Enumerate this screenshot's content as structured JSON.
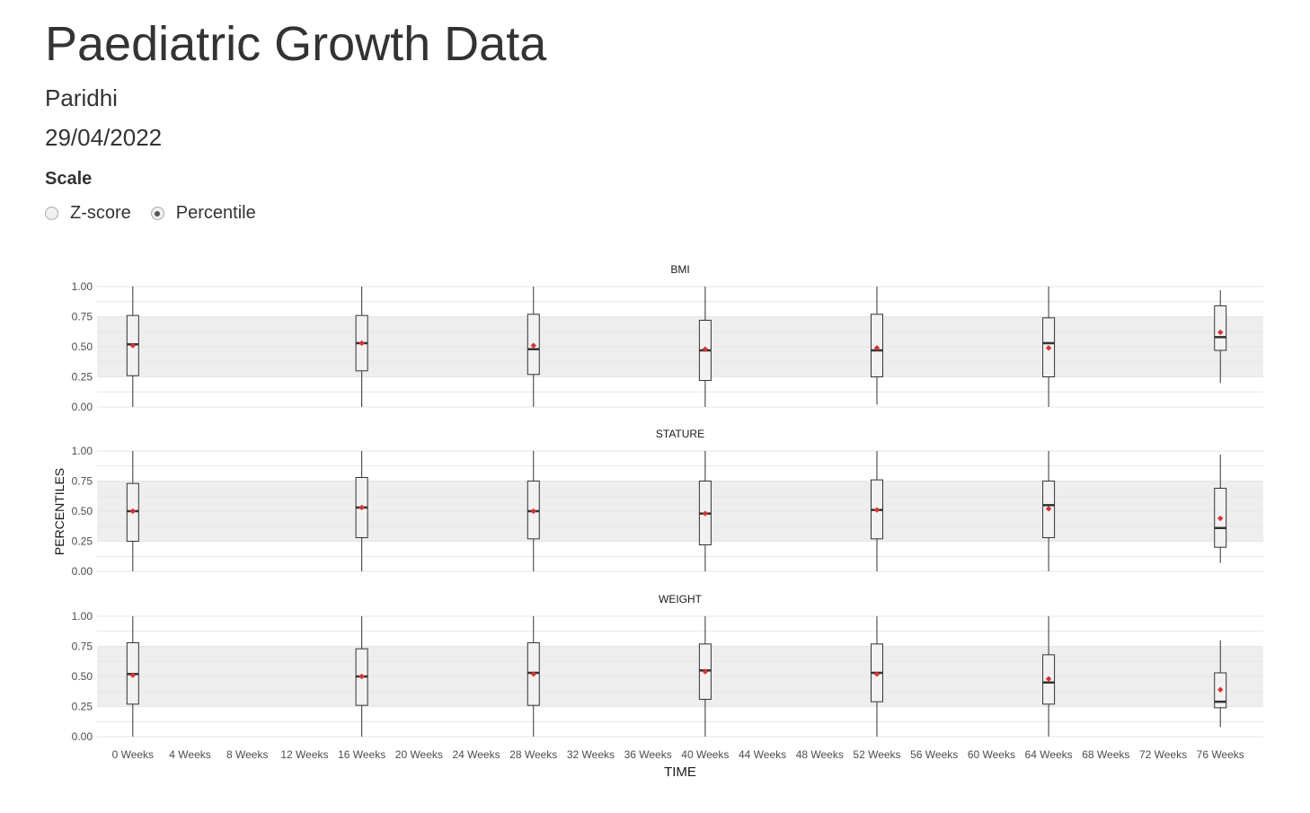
{
  "header": {
    "title": "Paediatric Growth Data",
    "patient_name": "Paridhi",
    "date": "29/04/2022"
  },
  "scale_control": {
    "label": "Scale",
    "options": [
      {
        "label": "Z-score",
        "selected": false
      },
      {
        "label": "Percentile",
        "selected": true
      }
    ]
  },
  "colors": {
    "band": "#eeeeee",
    "box_fill": "#f2f2f2",
    "box_stroke": "#333333",
    "mean_marker": "#e03030",
    "grid": "#e6e6e6",
    "text": "#333333"
  },
  "chart_data": {
    "type": "boxplot",
    "xlabel": "TIME",
    "ylabel": "PERCENTILES",
    "ylim": [
      0,
      1
    ],
    "y_ticks": [
      "0.00",
      "0.25",
      "0.50",
      "0.75",
      "1.00"
    ],
    "x_ticks": [
      {
        "week": 0,
        "label": "0 Weeks"
      },
      {
        "week": 4,
        "label": "4 Weeks"
      },
      {
        "week": 8,
        "label": "8 Weeks"
      },
      {
        "week": 12,
        "label": "12 Weeks"
      },
      {
        "week": 16,
        "label": "16 Weeks"
      },
      {
        "week": 20,
        "label": "20 Weeks"
      },
      {
        "week": 24,
        "label": "24 Weeks"
      },
      {
        "week": 28,
        "label": "28 Weeks"
      },
      {
        "week": 32,
        "label": "32 Weeks"
      },
      {
        "week": 36,
        "label": "36 Weeks"
      },
      {
        "week": 40,
        "label": "40 Weeks"
      },
      {
        "week": 44,
        "label": "44 Weeks"
      },
      {
        "week": 48,
        "label": "48 Weeks"
      },
      {
        "week": 52,
        "label": "52 Weeks"
      },
      {
        "week": 56,
        "label": "56 Weeks"
      },
      {
        "week": 60,
        "label": "60 Weeks"
      },
      {
        "week": 64,
        "label": "64 Weeks"
      },
      {
        "week": 68,
        "label": "68 Weeks"
      },
      {
        "week": 72,
        "label": "72 Weeks"
      },
      {
        "week": 76,
        "label": "76 Weeks"
      }
    ],
    "xlim": [
      -2.5,
      79
    ],
    "reference_band": [
      0.25,
      0.75
    ],
    "grid": true,
    "panels": [
      {
        "name": "BMI",
        "boxes": [
          {
            "week": 0,
            "min": 0.0,
            "q1": 0.26,
            "median": 0.52,
            "q3": 0.76,
            "max": 1.0,
            "mean": 0.51
          },
          {
            "week": 16,
            "min": 0.0,
            "q1": 0.3,
            "median": 0.53,
            "q3": 0.76,
            "max": 1.0,
            "mean": 0.53
          },
          {
            "week": 28,
            "min": 0.0,
            "q1": 0.27,
            "median": 0.48,
            "q3": 0.77,
            "max": 1.0,
            "mean": 0.51
          },
          {
            "week": 40,
            "min": 0.0,
            "q1": 0.22,
            "median": 0.47,
            "q3": 0.72,
            "max": 1.0,
            "mean": 0.48
          },
          {
            "week": 52,
            "min": 0.02,
            "q1": 0.25,
            "median": 0.47,
            "q3": 0.77,
            "max": 1.0,
            "mean": 0.49
          },
          {
            "week": 64,
            "min": 0.0,
            "q1": 0.25,
            "median": 0.53,
            "q3": 0.74,
            "max": 1.0,
            "mean": 0.49
          },
          {
            "week": 76,
            "min": 0.2,
            "q1": 0.47,
            "median": 0.58,
            "q3": 0.84,
            "max": 0.97,
            "mean": 0.62
          }
        ]
      },
      {
        "name": "STATURE",
        "boxes": [
          {
            "week": 0,
            "min": 0.0,
            "q1": 0.25,
            "median": 0.5,
            "q3": 0.73,
            "max": 1.0,
            "mean": 0.5
          },
          {
            "week": 16,
            "min": 0.0,
            "q1": 0.28,
            "median": 0.53,
            "q3": 0.78,
            "max": 1.0,
            "mean": 0.53
          },
          {
            "week": 28,
            "min": 0.0,
            "q1": 0.27,
            "median": 0.5,
            "q3": 0.75,
            "max": 1.0,
            "mean": 0.5
          },
          {
            "week": 40,
            "min": 0.0,
            "q1": 0.22,
            "median": 0.48,
            "q3": 0.75,
            "max": 1.0,
            "mean": 0.48
          },
          {
            "week": 52,
            "min": 0.0,
            "q1": 0.27,
            "median": 0.51,
            "q3": 0.76,
            "max": 1.0,
            "mean": 0.51
          },
          {
            "week": 64,
            "min": 0.0,
            "q1": 0.28,
            "median": 0.55,
            "q3": 0.75,
            "max": 1.0,
            "mean": 0.52
          },
          {
            "week": 76,
            "min": 0.07,
            "q1": 0.2,
            "median": 0.36,
            "q3": 0.69,
            "max": 0.97,
            "mean": 0.44
          }
        ]
      },
      {
        "name": "WEIGHT",
        "boxes": [
          {
            "week": 0,
            "min": 0.0,
            "q1": 0.27,
            "median": 0.52,
            "q3": 0.78,
            "max": 1.0,
            "mean": 0.51
          },
          {
            "week": 16,
            "min": 0.0,
            "q1": 0.26,
            "median": 0.5,
            "q3": 0.73,
            "max": 1.0,
            "mean": 0.5
          },
          {
            "week": 28,
            "min": 0.0,
            "q1": 0.26,
            "median": 0.53,
            "q3": 0.78,
            "max": 1.0,
            "mean": 0.52
          },
          {
            "week": 40,
            "min": 0.0,
            "q1": 0.31,
            "median": 0.55,
            "q3": 0.77,
            "max": 1.0,
            "mean": 0.54
          },
          {
            "week": 52,
            "min": 0.0,
            "q1": 0.29,
            "median": 0.53,
            "q3": 0.77,
            "max": 1.0,
            "mean": 0.52
          },
          {
            "week": 64,
            "min": 0.0,
            "q1": 0.27,
            "median": 0.45,
            "q3": 0.68,
            "max": 1.0,
            "mean": 0.48
          },
          {
            "week": 76,
            "min": 0.08,
            "q1": 0.24,
            "median": 0.29,
            "q3": 0.53,
            "max": 0.8,
            "mean": 0.39
          }
        ]
      }
    ]
  }
}
